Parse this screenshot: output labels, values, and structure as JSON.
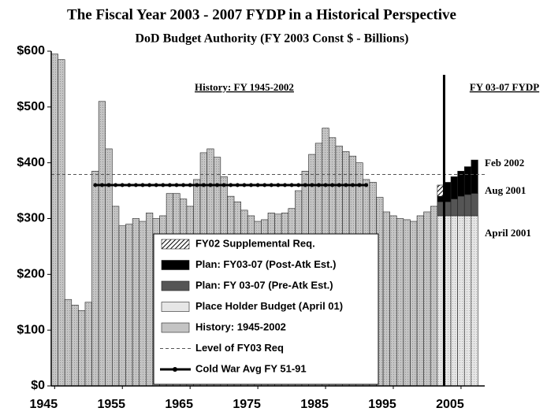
{
  "chart_data": {
    "type": "bar",
    "title": "The  Fiscal Year 2003 - 2007 FYDP in a Historical Perspective",
    "subtitle": "DoD Budget Authority (FY 2003 Const $ - Billions)",
    "x": [
      1945,
      1946,
      1947,
      1948,
      1949,
      1950,
      1951,
      1952,
      1953,
      1954,
      1955,
      1956,
      1957,
      1958,
      1959,
      1960,
      1961,
      1962,
      1963,
      1964,
      1965,
      1966,
      1967,
      1968,
      1969,
      1970,
      1971,
      1972,
      1973,
      1974,
      1975,
      1976,
      1977,
      1978,
      1979,
      1980,
      1981,
      1982,
      1983,
      1984,
      1985,
      1986,
      1987,
      1988,
      1989,
      1990,
      1991,
      1992,
      1993,
      1994,
      1995,
      1996,
      1997,
      1998,
      1999,
      2000,
      2001,
      2002,
      2003,
      2004,
      2005,
      2006,
      2007
    ],
    "stacked": true,
    "series": [
      {
        "name": "History: 1945-2002",
        "color": "#c4c4c4",
        "values": [
          595,
          585,
          155,
          145,
          135,
          150,
          385,
          510,
          425,
          322,
          287,
          290,
          300,
          295,
          310,
          300,
          305,
          345,
          345,
          335,
          322,
          370,
          418,
          425,
          410,
          375,
          340,
          330,
          315,
          305,
          295,
          298,
          310,
          308,
          310,
          318,
          350,
          385,
          415,
          435,
          462,
          445,
          430,
          420,
          412,
          400,
          370,
          365,
          338,
          312,
          305,
          300,
          298,
          295,
          305,
          312,
          322,
          null,
          null,
          null,
          null,
          null,
          null
        ]
      },
      {
        "name": "Place Holder Budget (April 01)",
        "color": "#e6e6e6",
        "values": [
          null,
          null,
          null,
          null,
          null,
          null,
          null,
          null,
          null,
          null,
          null,
          null,
          null,
          null,
          null,
          null,
          null,
          null,
          null,
          null,
          null,
          null,
          null,
          null,
          null,
          null,
          null,
          null,
          null,
          null,
          null,
          null,
          null,
          null,
          null,
          null,
          null,
          null,
          null,
          null,
          null,
          null,
          null,
          null,
          null,
          null,
          null,
          null,
          null,
          null,
          null,
          null,
          null,
          null,
          null,
          null,
          null,
          305,
          305,
          305,
          305,
          305,
          305
        ]
      },
      {
        "name": "Plan: FY 03-07 (Pre-Atk Est.)",
        "color": "#555555",
        "values": [
          null,
          null,
          null,
          null,
          null,
          null,
          null,
          null,
          null,
          null,
          null,
          null,
          null,
          null,
          null,
          null,
          null,
          null,
          null,
          null,
          null,
          null,
          null,
          null,
          null,
          null,
          null,
          null,
          null,
          null,
          null,
          null,
          null,
          null,
          null,
          null,
          null,
          null,
          null,
          null,
          null,
          null,
          null,
          null,
          null,
          null,
          null,
          null,
          null,
          null,
          null,
          null,
          null,
          null,
          null,
          null,
          null,
          25,
          25,
          30,
          35,
          38,
          40
        ]
      },
      {
        "name": "Plan: FY03-07 (Post-Atk Est.)",
        "color": "#000000",
        "values": [
          null,
          null,
          null,
          null,
          null,
          null,
          null,
          null,
          null,
          null,
          null,
          null,
          null,
          null,
          null,
          null,
          null,
          null,
          null,
          null,
          null,
          null,
          null,
          null,
          null,
          null,
          null,
          null,
          null,
          null,
          null,
          null,
          null,
          null,
          null,
          null,
          null,
          null,
          null,
          null,
          null,
          null,
          null,
          null,
          null,
          null,
          null,
          null,
          null,
          null,
          null,
          null,
          null,
          null,
          null,
          null,
          null,
          10,
          35,
          40,
          45,
          50,
          60
        ]
      },
      {
        "name": "FY02 Supplemental Req.",
        "color": "#000000",
        "hatched": true,
        "values": [
          null,
          null,
          null,
          null,
          null,
          null,
          null,
          null,
          null,
          null,
          null,
          null,
          null,
          null,
          null,
          null,
          null,
          null,
          null,
          null,
          null,
          null,
          null,
          null,
          null,
          null,
          null,
          null,
          null,
          null,
          null,
          null,
          null,
          null,
          null,
          null,
          null,
          null,
          null,
          null,
          null,
          null,
          null,
          null,
          null,
          null,
          null,
          null,
          null,
          null,
          null,
          null,
          null,
          null,
          null,
          null,
          null,
          20,
          null,
          null,
          null,
          null,
          null
        ]
      }
    ],
    "reference_lines": [
      {
        "name": "Level of FY03 Req",
        "value": 379,
        "style": "dashed",
        "color": "#555555"
      },
      {
        "name": "Cold War Avg FY 51-91",
        "value": 360,
        "x": [
          1951,
          1991
        ],
        "style": "dotted-marker",
        "color": "#000000"
      }
    ],
    "xlim": [
      1944.5,
      2008.5
    ],
    "xticks": [
      1945,
      1955,
      1965,
      1975,
      1985,
      1995,
      2005
    ],
    "ylim": [
      0,
      600
    ],
    "yticks": [
      {
        "value": 0,
        "label": "$0"
      },
      {
        "value": 100,
        "label": "$100"
      },
      {
        "value": 200,
        "label": "$200"
      },
      {
        "value": 300,
        "label": "$300"
      },
      {
        "value": 400,
        "label": "$400"
      },
      {
        "value": 500,
        "label": "$500"
      },
      {
        "value": 600,
        "label": "$600"
      }
    ],
    "divider": 2002.5,
    "annotations": [
      "History: FY 1945-2002",
      "FY 03-07 FYDP",
      "Feb 2002",
      "Aug 2001",
      "April 2001"
    ],
    "grid": false
  }
}
